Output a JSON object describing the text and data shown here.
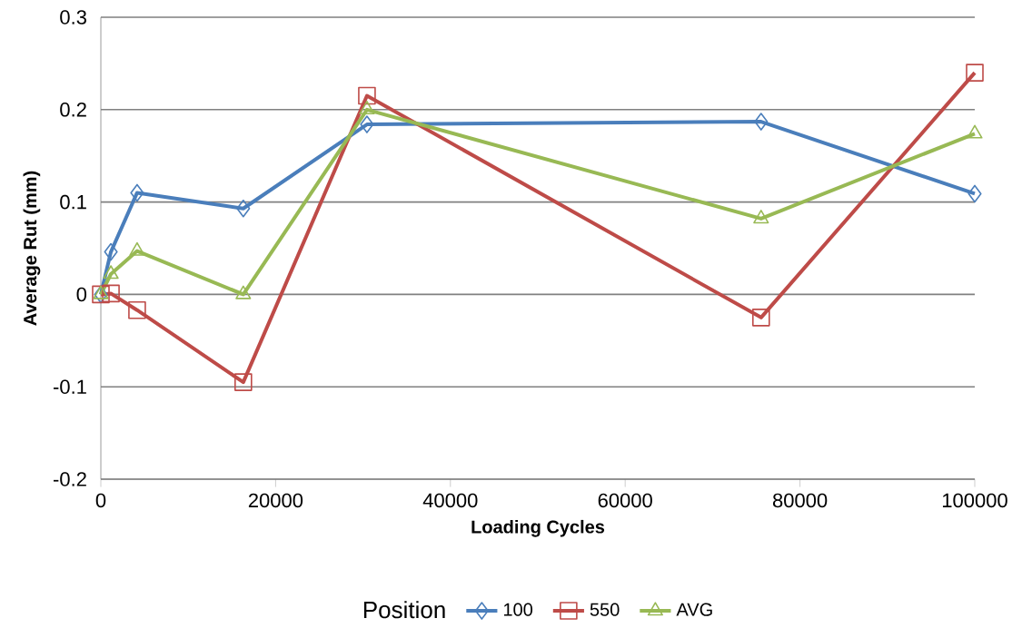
{
  "chart_data": {
    "type": "line",
    "xlabel": "Loading Cycles",
    "ylabel": "Average Rut (mm)",
    "legend_title": "Position",
    "legend": "bottom",
    "grid": "y",
    "xlim": [
      0,
      100000
    ],
    "xticks": [
      0,
      20000,
      40000,
      60000,
      80000,
      100000
    ],
    "ylim": [
      -0.2,
      0.3
    ],
    "yticks": [
      -0.2,
      -0.1,
      0,
      0.1,
      0.2,
      0.3
    ],
    "series": [
      {
        "name": "100",
        "color": "#4a7ebb",
        "marker": "diamond",
        "x": [
          0,
          1150,
          4150,
          16300,
          30450,
          75550,
          100000
        ],
        "values": [
          0,
          0.046,
          0.11,
          0.093,
          0.184,
          0.187,
          0.109
        ]
      },
      {
        "name": "550",
        "color": "#be4b48",
        "marker": "square",
        "x": [
          0,
          1150,
          4150,
          16300,
          30450,
          75550,
          100000
        ],
        "values": [
          0,
          0.001,
          -0.017,
          -0.095,
          0.215,
          -0.025,
          0.24
        ]
      },
      {
        "name": "AVG",
        "color": "#98b954",
        "marker": "triangle",
        "x": [
          0,
          1150,
          4150,
          16300,
          30450,
          75550,
          100000
        ],
        "values": [
          0,
          0.022,
          0.047,
          0,
          0.2,
          0.082,
          0.174
        ]
      }
    ]
  }
}
